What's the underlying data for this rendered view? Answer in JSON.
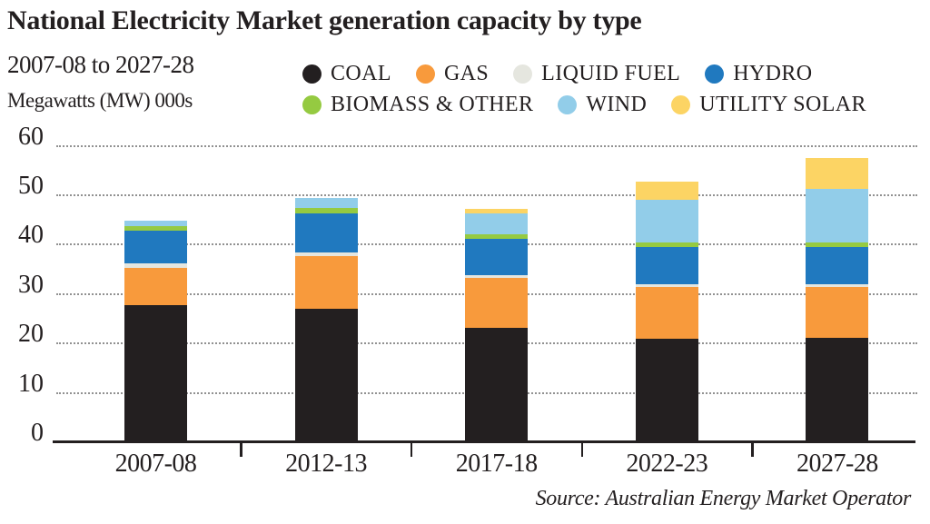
{
  "chart_data": {
    "type": "bar",
    "stacked": true,
    "title": "National Electricity Market generation capacity by type",
    "subtitle": "2007-08 to 2027-28",
    "ylabel": "Megawatts (MW) 000s",
    "source": "Source: Australian Energy Market Operator",
    "categories": [
      "2007-08",
      "2012-13",
      "2017-18",
      "2022-23",
      "2027-28"
    ],
    "yticks": [
      0,
      10,
      20,
      30,
      40,
      50,
      60
    ],
    "ylim": [
      0,
      60
    ],
    "grid": "horizontal-dotted",
    "legend_position": "top",
    "legend_rows": [
      [
        "COAL",
        "GAS",
        "LIQUID FUEL",
        "HYDRO"
      ],
      [
        "BIOMASS & OTHER",
        "WIND",
        "UTILITY SOLAR"
      ]
    ],
    "series": [
      {
        "name": "COAL",
        "color": "#231f20",
        "values": [
          27.8,
          27.0,
          23.2,
          21.0,
          21.1
        ]
      },
      {
        "name": "GAS",
        "color": "#f89a3c",
        "values": [
          7.5,
          10.7,
          10.1,
          10.4,
          10.3
        ]
      },
      {
        "name": "LIQUID FUEL",
        "color": "#e5e6df",
        "values": [
          0.9,
          0.8,
          0.6,
          0.6,
          0.5
        ]
      },
      {
        "name": "HYDRO",
        "color": "#2079bf",
        "values": [
          6.6,
          7.8,
          7.3,
          7.6,
          7.7
        ]
      },
      {
        "name": "BIOMASS & OTHER",
        "color": "#95ca41",
        "values": [
          0.9,
          1.2,
          0.9,
          0.8,
          0.8
        ]
      },
      {
        "name": "WIND",
        "color": "#92cde9",
        "values": [
          1.1,
          1.9,
          4.3,
          8.7,
          10.8
        ]
      },
      {
        "name": "UTILITY SOLAR",
        "color": "#fcd464",
        "values": [
          0.0,
          0.0,
          0.8,
          3.6,
          6.4
        ]
      }
    ]
  },
  "colors": {
    "text": "#231f20",
    "gridline": "#919191",
    "axis": "#231f20",
    "background": "#ffffff"
  }
}
